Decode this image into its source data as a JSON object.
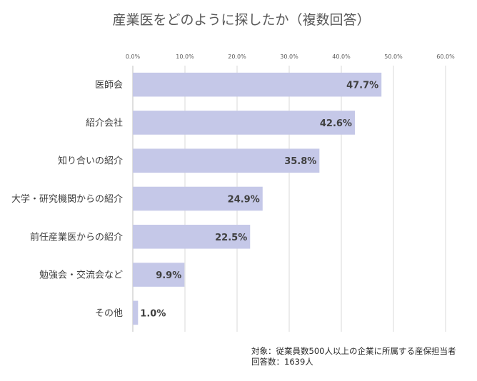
{
  "chart_data": {
    "type": "bar",
    "orientation": "horizontal",
    "title": "産業医をどのように探したか（複数回答）",
    "categories": [
      "医師会",
      "紹介会社",
      "知り合いの紹介",
      "大学・研究機関からの紹介",
      "前任産業医からの紹介",
      "勉強会・交流会など",
      "その他"
    ],
    "values": [
      47.7,
      42.6,
      35.8,
      24.9,
      22.5,
      9.9,
      1.0
    ],
    "data_labels": [
      "47.7%",
      "42.6%",
      "35.8%",
      "24.9%",
      "22.5%",
      "9.9%",
      "1.0%"
    ],
    "xlim": [
      0,
      60
    ],
    "x_ticks": [
      0,
      10,
      20,
      30,
      40,
      50,
      60
    ],
    "x_tick_labels": [
      "0.0%",
      "10.0%",
      "20.0%",
      "30.0%",
      "40.0%",
      "50.0%",
      "60.0%"
    ],
    "x_axis_position": "top",
    "grid": true,
    "bar_color": "#c5c8e8"
  },
  "footnote": {
    "target": "対象：従業員数500人以上の企業に所属する産保担当者",
    "respondents": "回答数：1639人"
  }
}
